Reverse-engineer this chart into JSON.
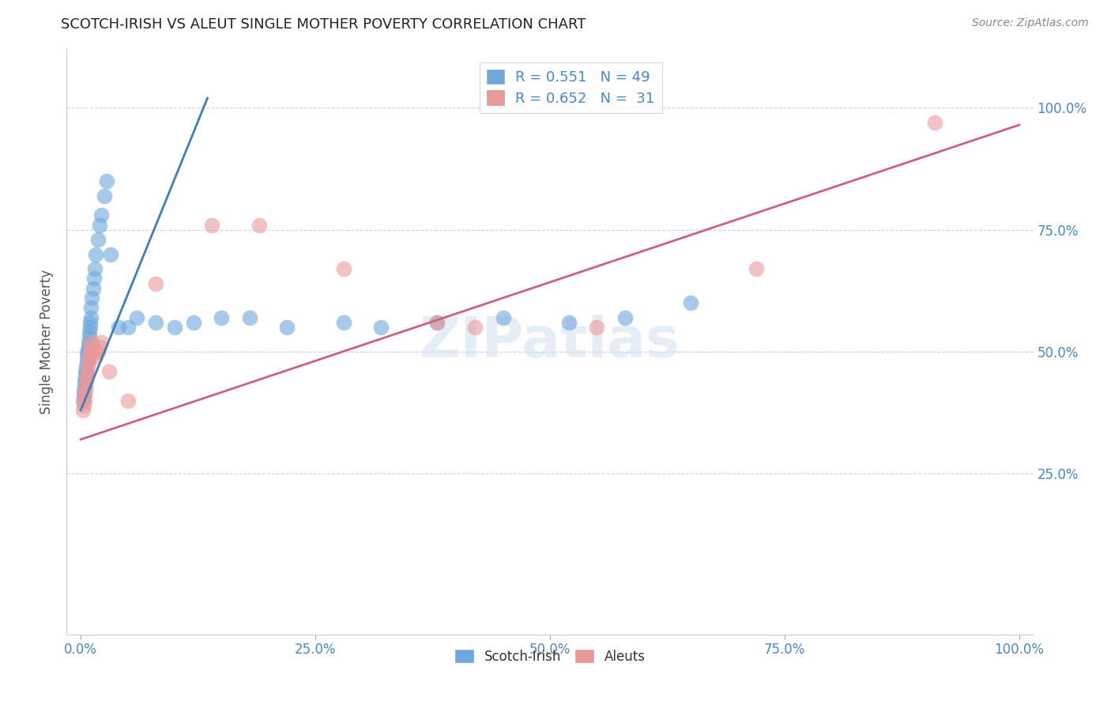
{
  "title": "SCOTCH-IRISH VS ALEUT SINGLE MOTHER POVERTY CORRELATION CHART",
  "source": "Source: ZipAtlas.com",
  "ylabel": "Single Mother Poverty",
  "xlim": [
    0.0,
    1.0
  ],
  "ylim": [
    -0.08,
    1.12
  ],
  "xtick_vals": [
    0.0,
    0.25,
    0.5,
    0.75,
    1.0
  ],
  "xtick_labels": [
    "0.0%",
    "25.0%",
    "50.0%",
    "75.0%",
    "100.0%"
  ],
  "ytick_vals": [
    0.25,
    0.5,
    0.75,
    1.0
  ],
  "ytick_labels": [
    "25.0%",
    "50.0%",
    "75.0%",
    "100.0%"
  ],
  "scotch_irish_color": "#6fa8dc",
  "aleuts_color": "#ea9999",
  "scotch_irish_R": 0.551,
  "scotch_irish_N": 49,
  "aleuts_R": 0.652,
  "aleuts_N": 31,
  "legend_label_1": "Scotch-Irish",
  "legend_label_2": "Aleuts",
  "si_line_x": [
    0.0,
    0.135
  ],
  "si_line_y": [
    0.38,
    1.02
  ],
  "al_line_x": [
    0.0,
    1.0
  ],
  "al_line_y": [
    0.32,
    0.965
  ],
  "scotch_irish_x": [
    0.002,
    0.003,
    0.003,
    0.004,
    0.004,
    0.005,
    0.005,
    0.005,
    0.006,
    0.006,
    0.007,
    0.007,
    0.007,
    0.008,
    0.008,
    0.008,
    0.009,
    0.009,
    0.01,
    0.01,
    0.011,
    0.011,
    0.012,
    0.013,
    0.014,
    0.015,
    0.016,
    0.018,
    0.02,
    0.022,
    0.025,
    0.028,
    0.032,
    0.04,
    0.05,
    0.06,
    0.08,
    0.1,
    0.12,
    0.15,
    0.18,
    0.22,
    0.28,
    0.32,
    0.38,
    0.45,
    0.52,
    0.58,
    0.65
  ],
  "scotch_irish_y": [
    0.4,
    0.41,
    0.42,
    0.43,
    0.44,
    0.44,
    0.45,
    0.46,
    0.46,
    0.47,
    0.48,
    0.49,
    0.5,
    0.5,
    0.51,
    0.52,
    0.53,
    0.54,
    0.55,
    0.56,
    0.57,
    0.59,
    0.61,
    0.63,
    0.65,
    0.67,
    0.7,
    0.73,
    0.76,
    0.78,
    0.82,
    0.85,
    0.7,
    0.55,
    0.55,
    0.57,
    0.56,
    0.55,
    0.56,
    0.57,
    0.57,
    0.55,
    0.56,
    0.55,
    0.56,
    0.57,
    0.56,
    0.57,
    0.6
  ],
  "aleuts_x": [
    0.002,
    0.003,
    0.004,
    0.004,
    0.005,
    0.005,
    0.006,
    0.007,
    0.007,
    0.008,
    0.008,
    0.009,
    0.01,
    0.011,
    0.012,
    0.014,
    0.016,
    0.018,
    0.02,
    0.022,
    0.03,
    0.05,
    0.08,
    0.14,
    0.19,
    0.28,
    0.38,
    0.42,
    0.55,
    0.72,
    0.91
  ],
  "aleuts_y": [
    0.38,
    0.39,
    0.4,
    0.41,
    0.42,
    0.43,
    0.44,
    0.45,
    0.46,
    0.47,
    0.48,
    0.49,
    0.5,
    0.51,
    0.52,
    0.5,
    0.49,
    0.5,
    0.51,
    0.52,
    0.46,
    0.4,
    0.64,
    0.76,
    0.76,
    0.67,
    0.56,
    0.55,
    0.55,
    0.67,
    0.97
  ]
}
